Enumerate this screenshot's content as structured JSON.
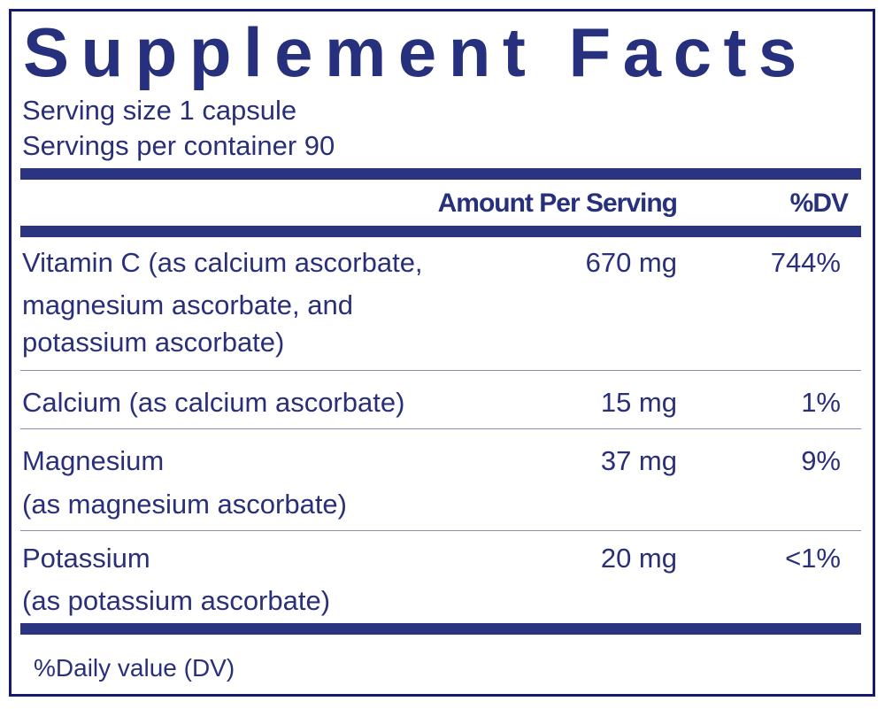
{
  "title": "Supplement Facts",
  "serving_size": "Serving size  1 capsule",
  "servings_per_container": "Servings per container  90",
  "header": {
    "amount": "Amount Per Serving",
    "dv": "%DV"
  },
  "rows": [
    {
      "lines": [
        "Vitamin C (as calcium ascorbate,",
        "magnesium ascorbate, and",
        "potassium ascorbate)"
      ],
      "amount": "670 mg",
      "dv": "744%"
    },
    {
      "lines": [
        "Calcium (as calcium ascorbate)"
      ],
      "amount": "15 mg",
      "dv": "1%"
    },
    {
      "lines": [
        "Magnesium",
        "(as magnesium ascorbate)"
      ],
      "amount": "37 mg",
      "dv": "9%"
    },
    {
      "lines": [
        "Potassium",
        "(as potassium ascorbate)"
      ],
      "amount": "20 mg",
      "dv": "<1%"
    }
  ],
  "footnote": "%Daily value (DV)",
  "colors": {
    "ink": "#2a2f7a",
    "bar": "#2b3480",
    "border": "#161a6e"
  }
}
